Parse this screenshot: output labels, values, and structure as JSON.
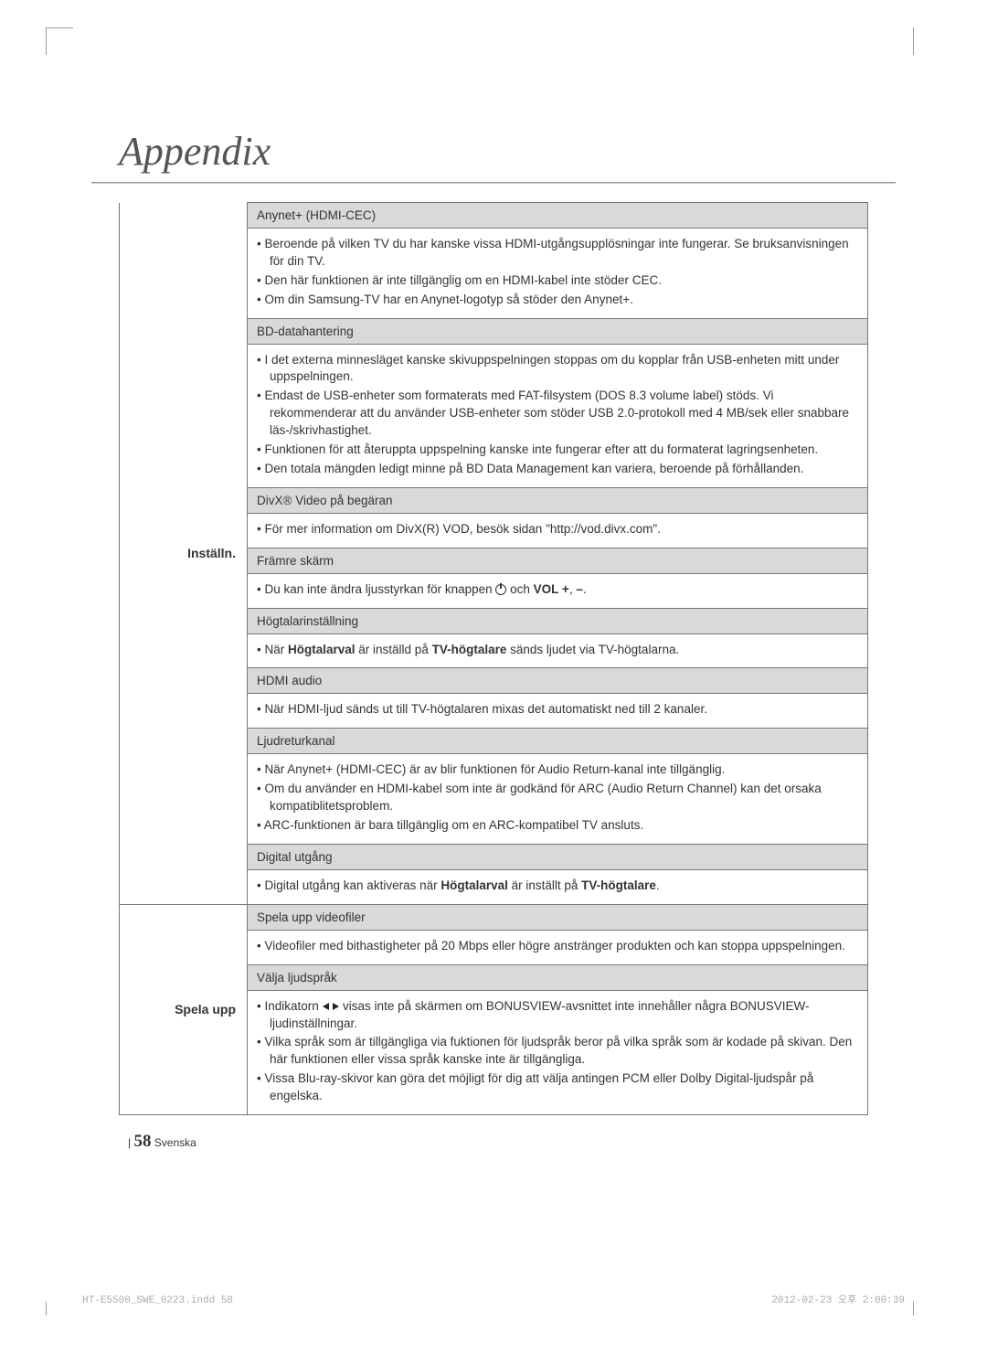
{
  "page": {
    "title": "Appendix",
    "number": "58",
    "lang_label": "Svenska",
    "footer_file": "HT-E5500_SWE_0223.indd   58",
    "footer_date": "2012-02-23   오후 2:00:39"
  },
  "sections": [
    {
      "label": "Inställn.",
      "rows": [
        {
          "header": "Anynet+ (HDMI-CEC)",
          "items": [
            {
              "text": "Beroende på vilken TV du har kanske vissa HDMI-utgångsupplösningar inte fungerar. Se bruksanvisningen för din TV."
            },
            {
              "text": "Den här funktionen är inte tillgänglig om en HDMI-kabel inte stöder CEC."
            },
            {
              "text": "Om din Samsung-TV har en Anynet-logotyp så stöder den Anynet+."
            }
          ]
        },
        {
          "header": "BD-datahantering",
          "items": [
            {
              "text": "I det externa minnesläget kanske skivuppspelningen stoppas om du kopplar från USB-enheten mitt under uppspelningen."
            },
            {
              "text": "Endast de USB-enheter som formaterats med FAT-filsystem (DOS 8.3 volume label) stöds. Vi rekommenderar att du använder USB-enheter som stöder USB 2.0-protokoll med 4 MB/sek eller snabbare läs-/skrivhastighet."
            },
            {
              "text": "Funktionen för att återuppta uppspelning kanske inte fungerar efter att du formaterat lagringsenheten."
            },
            {
              "text": "Den totala mängden ledigt minne på BD Data Management kan variera, beroende på förhållanden."
            }
          ]
        },
        {
          "header": "DivX® Video på begäran",
          "items": [
            {
              "text": "För mer information om DivX(R) VOD, besök sidan \"http://vod.divx.com\"."
            }
          ]
        },
        {
          "header": "Främre skärm",
          "items": [
            {
              "html": "Du kan inte ändra ljusstyrkan för knappen <span class='power-icon' data-name='power-icon' data-interactable='false'></span> och <b>VOL +</b>, <b>–</b>."
            }
          ]
        },
        {
          "header": "Högtalarinställning",
          "items": [
            {
              "html": "När <b>Högtalarval</b> är inställd på <b>TV-högtalare</b> sänds ljudet via TV-högtalarna."
            }
          ]
        },
        {
          "header": "HDMI audio",
          "items": [
            {
              "text": "När HDMI-ljud sänds ut till TV-högtalaren mixas det automatiskt ned till 2 kanaler."
            }
          ]
        },
        {
          "header": "Ljudreturkanal",
          "items": [
            {
              "text": "När Anynet+ (HDMI-CEC) är av blir funktionen för Audio Return-kanal inte tillgänglig."
            },
            {
              "text": "Om du använder en HDMI-kabel som inte är godkänd för ARC (Audio Return Channel) kan det orsaka kompatiblitetsproblem."
            },
            {
              "text": "ARC-funktionen är bara tillgänglig om en ARC-kompatibel TV ansluts."
            }
          ]
        },
        {
          "header": "Digital utgång",
          "items": [
            {
              "html": "Digital utgång kan aktiveras när <b>Högtalarval</b> är inställt på <b>TV-högtalare</b>."
            }
          ]
        }
      ]
    },
    {
      "label": "Spela upp",
      "rows": [
        {
          "header": "Spela upp videofiler",
          "items": [
            {
              "text": "Videofiler med bithastigheter på 20 Mbps eller högre anstränger produkten och kan stoppa uppspelningen."
            }
          ]
        },
        {
          "header": "Välja ljudspråk",
          "items": [
            {
              "html": "Indikatorn <span class='arrow-left' data-name='arrow-left-icon' data-interactable='false'></span> <span class='arrow-right' data-name='arrow-right-icon' data-interactable='false'></span> visas inte på skärmen om BONUSVIEW-avsnittet inte innehåller några BONUSVIEW-ljudinställningar."
            },
            {
              "text": "Vilka språk som är tillgängliga via fuktionen för ljudspråk beror på vilka språk som är kodade på skivan. Den här funktionen eller vissa språk kanske inte är tillgängliga."
            },
            {
              "text": "Vissa Blu-ray-skivor kan göra det möjligt för dig att välja antingen PCM eller Dolby Digital-ljudspår på engelska."
            }
          ]
        }
      ]
    }
  ]
}
